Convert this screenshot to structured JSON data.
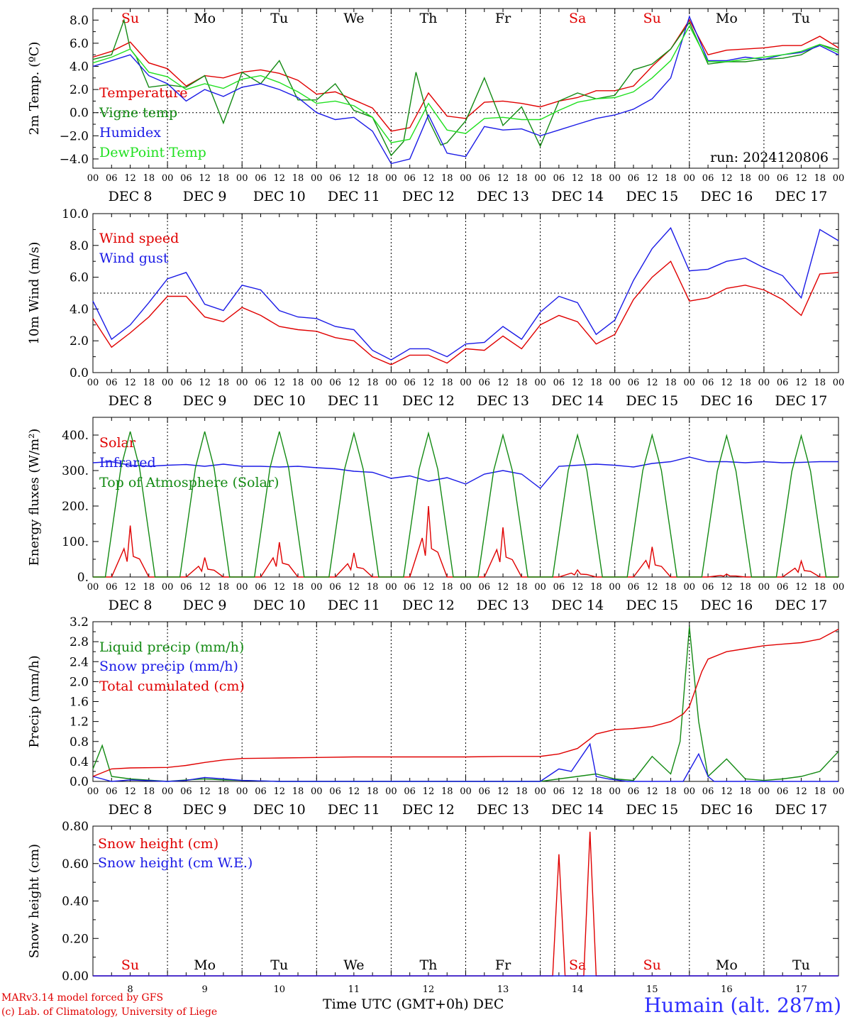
{
  "days": [
    "Su",
    "Mo",
    "Tu",
    "We",
    "Th",
    "Fr",
    "Sa",
    "Su",
    "Mo",
    "Tu"
  ],
  "day_colors": [
    "#e00000",
    "#000000",
    "#000000",
    "#000000",
    "#000000",
    "#000000",
    "#e00000",
    "#e00000",
    "#000000",
    "#000000"
  ],
  "dates": [
    "DEC  8",
    "DEC  9",
    "DEC 10",
    "DEC 11",
    "DEC 12",
    "DEC 13",
    "DEC 14",
    "DEC 15",
    "DEC 16",
    "DEC 17"
  ],
  "day_numbers": [
    "8",
    "9",
    "10",
    "11",
    "12",
    "13",
    "14",
    "15",
    "16",
    "17"
  ],
  "hour_ticks": [
    "00",
    "06",
    "12",
    "18"
  ],
  "run_label": "run: 2024120806",
  "x_title": "Time UTC (GMT+0h)",
  "x_title_month": "DEC",
  "credit_line1": "MARv3.14 model forced by GFS",
  "credit_line2": "(c) Lab. of Climatology, University of Liege",
  "station": "Humain (alt. 287m)",
  "chart_data": [
    {
      "type": "line",
      "ylabel": "2m Temp. (ºC)",
      "ylim": [
        -4.8,
        9.0
      ],
      "yticks": [
        -4.0,
        -2.0,
        0.0,
        2.0,
        4.0,
        6.0,
        8.0
      ],
      "ytick_labels": [
        "−4.0",
        "−2.0",
        "0.0",
        "2.0",
        "4.0",
        "6.0",
        "8.0"
      ],
      "reference_line": 0.0,
      "x_unit": "hours since DEC 8 00 UTC",
      "series": [
        {
          "name": "Temperature",
          "color": "#e00000",
          "x": [
            0,
            6,
            12,
            18,
            24,
            30,
            36,
            42,
            48,
            54,
            60,
            66,
            72,
            78,
            84,
            90,
            96,
            102,
            108,
            114,
            120,
            126,
            132,
            138,
            144,
            150,
            156,
            162,
            168,
            174,
            180,
            186,
            192,
            198,
            204,
            210,
            216,
            222,
            228,
            234,
            240
          ],
          "values": [
            4.8,
            5.3,
            6.1,
            4.3,
            3.8,
            2.3,
            3.2,
            3.0,
            3.5,
            3.7,
            3.4,
            2.8,
            1.6,
            1.8,
            1.1,
            0.4,
            -1.6,
            -1.3,
            1.7,
            -0.3,
            -0.5,
            0.9,
            1.0,
            0.8,
            0.5,
            1.0,
            1.3,
            1.9,
            1.9,
            2.3,
            4.0,
            5.5,
            8.0,
            5.0,
            5.4,
            5.5,
            5.6,
            5.8,
            5.8,
            6.6,
            5.6
          ]
        },
        {
          "name": "Vigne temp",
          "color": "#138a13",
          "x": [
            0,
            6,
            10,
            12,
            14,
            18,
            24,
            30,
            36,
            42,
            48,
            54,
            60,
            66,
            72,
            78,
            84,
            90,
            96,
            100,
            104,
            108,
            112,
            114,
            120,
            126,
            130,
            132,
            138,
            144,
            150,
            156,
            162,
            168,
            174,
            180,
            186,
            192,
            198,
            204,
            210,
            216,
            222,
            228,
            234,
            240
          ],
          "values": [
            4.6,
            5.0,
            8.0,
            5.5,
            4.8,
            2.2,
            2.4,
            2.2,
            3.2,
            -0.9,
            3.5,
            2.5,
            4.5,
            1.1,
            1.1,
            2.5,
            0.2,
            -0.4,
            -3.7,
            -2.5,
            3.5,
            -0.6,
            -2.8,
            -2.6,
            -0.7,
            3.0,
            0.3,
            -1.1,
            0.5,
            -2.9,
            1.0,
            1.7,
            1.2,
            1.5,
            3.7,
            4.2,
            5.5,
            7.8,
            4.2,
            4.4,
            4.4,
            4.6,
            4.7,
            5.0,
            5.9,
            5.4
          ]
        },
        {
          "name": "Humidex",
          "color": "#1a1ae6",
          "x": [
            0,
            6,
            12,
            18,
            24,
            30,
            36,
            42,
            48,
            54,
            60,
            66,
            72,
            78,
            84,
            90,
            96,
            102,
            108,
            114,
            120,
            126,
            132,
            138,
            144,
            150,
            156,
            162,
            168,
            174,
            180,
            186,
            192,
            198,
            204,
            210,
            216,
            222,
            228,
            234,
            240
          ],
          "values": [
            4.0,
            4.5,
            5.0,
            3.2,
            2.5,
            1.0,
            2.0,
            1.4,
            2.2,
            2.5,
            2.0,
            1.3,
            0.0,
            -0.6,
            -0.4,
            -1.6,
            -4.4,
            -4.0,
            -0.2,
            -3.5,
            -3.8,
            -1.2,
            -1.5,
            -1.4,
            -2.0,
            -1.5,
            -1.0,
            -0.5,
            -0.2,
            0.3,
            1.2,
            3.0,
            8.3,
            4.5,
            4.5,
            4.8,
            4.6,
            5.0,
            5.2,
            5.8,
            5.0
          ]
        },
        {
          "name": "DewPoint Temp",
          "color": "#20e020",
          "x": [
            0,
            6,
            12,
            18,
            24,
            30,
            36,
            42,
            48,
            54,
            60,
            66,
            72,
            78,
            84,
            90,
            96,
            102,
            108,
            114,
            120,
            126,
            132,
            138,
            144,
            150,
            156,
            162,
            168,
            174,
            180,
            186,
            192,
            198,
            204,
            210,
            216,
            222,
            228,
            234,
            240
          ],
          "values": [
            4.3,
            4.8,
            5.5,
            3.5,
            3.1,
            2.0,
            2.5,
            2.1,
            2.9,
            3.2,
            2.6,
            1.8,
            0.8,
            1.0,
            0.6,
            -0.4,
            -2.6,
            -2.3,
            0.8,
            -1.5,
            -1.8,
            -0.5,
            -0.4,
            -0.6,
            -0.6,
            0.2,
            0.9,
            1.2,
            1.3,
            1.8,
            3.0,
            4.5,
            7.5,
            4.4,
            4.4,
            4.6,
            4.8,
            5.0,
            5.3,
            5.9,
            5.2
          ]
        }
      ]
    },
    {
      "type": "line",
      "ylabel": "10m Wind (m/s)",
      "ylim": [
        0.0,
        10.0
      ],
      "yticks": [
        0.0,
        2.0,
        4.0,
        6.0,
        8.0,
        10.0
      ],
      "ytick_labels": [
        "0.0",
        "2.0",
        "4.0",
        "6.0",
        "8.0",
        "10.0"
      ],
      "reference_line": 5.0,
      "series": [
        {
          "name": "Wind speed",
          "color": "#e00000",
          "x": [
            0,
            6,
            12,
            18,
            24,
            30,
            36,
            42,
            48,
            54,
            60,
            66,
            72,
            78,
            84,
            90,
            96,
            102,
            108,
            114,
            120,
            126,
            132,
            138,
            144,
            150,
            156,
            162,
            168,
            174,
            180,
            186,
            192,
            198,
            204,
            210,
            216,
            222,
            228,
            234,
            240
          ],
          "values": [
            3.4,
            1.6,
            2.5,
            3.5,
            4.8,
            4.8,
            3.5,
            3.2,
            4.1,
            3.6,
            2.9,
            2.7,
            2.6,
            2.2,
            2.0,
            1.0,
            0.5,
            1.1,
            1.1,
            0.6,
            1.5,
            1.4,
            2.3,
            1.5,
            3.0,
            3.6,
            3.2,
            1.8,
            2.4,
            4.6,
            6.0,
            7.0,
            4.5,
            4.7,
            5.3,
            5.5,
            5.2,
            4.6,
            3.6,
            6.2,
            6.3
          ]
        },
        {
          "name": "Wind gust",
          "color": "#1a1ae6",
          "x": [
            0,
            6,
            12,
            18,
            24,
            30,
            36,
            42,
            48,
            54,
            60,
            66,
            72,
            78,
            84,
            90,
            96,
            102,
            108,
            114,
            120,
            126,
            132,
            138,
            144,
            150,
            156,
            162,
            168,
            174,
            180,
            186,
            192,
            198,
            204,
            210,
            216,
            222,
            228,
            234,
            240
          ],
          "values": [
            4.5,
            2.1,
            3.0,
            4.4,
            5.9,
            6.3,
            4.3,
            3.9,
            5.5,
            5.2,
            3.9,
            3.5,
            3.4,
            2.9,
            2.7,
            1.4,
            0.8,
            1.5,
            1.5,
            1.0,
            1.8,
            1.9,
            2.9,
            2.1,
            3.8,
            4.8,
            4.4,
            2.4,
            3.3,
            5.8,
            7.8,
            9.1,
            6.4,
            6.5,
            7.0,
            7.2,
            6.6,
            6.1,
            4.7,
            9.0,
            8.3
          ]
        }
      ]
    },
    {
      "type": "line",
      "ylabel": "Energy fluxes (W/m²)",
      "ylim": [
        0,
        450
      ],
      "yticks": [
        0,
        100,
        200,
        300,
        400
      ],
      "ytick_labels": [
        "0.",
        "100.",
        "200.",
        "300.",
        "400."
      ],
      "series": [
        {
          "name": "Solar",
          "color": "#e00000",
          "peaks": [
            145,
            55,
            98,
            68,
            200,
            140,
            20,
            85,
            8,
            45
          ]
        },
        {
          "name": "Infrared",
          "color": "#1a1ae6",
          "x": [
            0,
            6,
            12,
            18,
            24,
            30,
            36,
            42,
            48,
            54,
            60,
            66,
            72,
            78,
            84,
            90,
            96,
            102,
            108,
            114,
            120,
            126,
            132,
            138,
            144,
            150,
            156,
            162,
            168,
            174,
            180,
            186,
            192,
            198,
            204,
            210,
            216,
            222,
            228,
            234,
            240
          ],
          "values": [
            322,
            325,
            315,
            312,
            315,
            317,
            312,
            318,
            312,
            312,
            310,
            312,
            308,
            305,
            298,
            295,
            278,
            285,
            270,
            280,
            262,
            290,
            300,
            290,
            250,
            312,
            315,
            318,
            315,
            310,
            320,
            325,
            338,
            325,
            325,
            322,
            325,
            322,
            323,
            325,
            325
          ]
        },
        {
          "name": "Top of Atmosphere (Solar)",
          "color": "#138a13",
          "peaks": [
            410,
            410,
            410,
            405,
            405,
            400,
            400,
            400,
            398,
            398
          ]
        }
      ]
    },
    {
      "type": "line",
      "ylabel": "Precip (mm/h)",
      "ylim": [
        0.0,
        3.2
      ],
      "yticks": [
        0.0,
        0.4,
        0.8,
        1.2,
        1.6,
        2.0,
        2.4,
        2.8,
        3.2
      ],
      "ytick_labels": [
        "0.0",
        "0.4",
        "0.8",
        "1.2",
        "1.6",
        "2.0",
        "2.4",
        "2.8",
        "3.2"
      ],
      "series": [
        {
          "name": "Liquid precip (mm/h)",
          "color": "#138a13",
          "x": [
            0,
            3,
            6,
            12,
            24,
            30,
            36,
            42,
            48,
            60,
            72,
            84,
            96,
            108,
            120,
            132,
            144,
            150,
            156,
            162,
            168,
            174,
            180,
            186,
            189,
            192,
            195,
            198,
            204,
            210,
            216,
            222,
            228,
            234,
            240
          ],
          "values": [
            0.25,
            0.72,
            0.1,
            0.05,
            0.0,
            0.03,
            0.05,
            0.03,
            0.02,
            0.0,
            0.0,
            0.0,
            0.0,
            0.0,
            0.0,
            0.0,
            0.0,
            0.05,
            0.1,
            0.15,
            0.05,
            0.02,
            0.5,
            0.15,
            0.8,
            3.1,
            1.2,
            0.1,
            0.45,
            0.05,
            0.02,
            0.05,
            0.1,
            0.2,
            0.6
          ]
        },
        {
          "name": "Snow precip (mm/h)",
          "color": "#1a1ae6",
          "x": [
            0,
            6,
            12,
            24,
            30,
            36,
            42,
            48,
            60,
            72,
            84,
            96,
            108,
            120,
            132,
            144,
            150,
            154,
            160,
            162,
            166,
            172,
            180,
            190,
            195,
            198,
            200,
            204,
            210,
            240
          ],
          "values": [
            0.1,
            0.0,
            0.03,
            0.0,
            0.02,
            0.08,
            0.05,
            0.02,
            0.0,
            0.0,
            0.0,
            0.0,
            0.0,
            0.0,
            0.0,
            0.0,
            0.25,
            0.2,
            0.75,
            0.1,
            0.05,
            0.0,
            0.0,
            0.0,
            0.55,
            0.1,
            0.0,
            0.0,
            0.0,
            0.0
          ]
        },
        {
          "name": "Total cumulated (cm)",
          "color": "#e00000",
          "x": [
            0,
            6,
            12,
            24,
            30,
            36,
            42,
            48,
            60,
            72,
            84,
            96,
            108,
            120,
            132,
            144,
            150,
            156,
            160,
            162,
            168,
            174,
            180,
            186,
            190,
            192,
            196,
            198,
            204,
            210,
            216,
            222,
            228,
            234,
            240
          ],
          "values": [
            0.1,
            0.25,
            0.27,
            0.28,
            0.32,
            0.38,
            0.43,
            0.46,
            0.47,
            0.48,
            0.49,
            0.49,
            0.49,
            0.49,
            0.5,
            0.5,
            0.55,
            0.66,
            0.85,
            0.95,
            1.04,
            1.06,
            1.1,
            1.2,
            1.35,
            1.5,
            2.2,
            2.45,
            2.6,
            2.66,
            2.72,
            2.75,
            2.78,
            2.85,
            3.05
          ]
        }
      ]
    },
    {
      "type": "line",
      "ylabel": "Snow height (cm)",
      "ylim": [
        0.0,
        0.8
      ],
      "yticks": [
        0.0,
        0.2,
        0.4,
        0.6,
        0.8
      ],
      "ytick_labels": [
        "0.00",
        "0.20",
        "0.40",
        "0.60",
        "0.80"
      ],
      "series": [
        {
          "name": "Snow height (cm)",
          "color": "#e00000",
          "x": [
            0,
            148,
            150,
            152,
            156,
            158,
            160,
            162,
            164,
            240
          ],
          "values": [
            0,
            0,
            0.65,
            0,
            0,
            0,
            0.77,
            0,
            0,
            0
          ]
        },
        {
          "name": "Snow height (cm W.E.)",
          "color": "#1a1ae6",
          "x": [
            0,
            240
          ],
          "values": [
            0,
            0
          ]
        }
      ]
    }
  ]
}
